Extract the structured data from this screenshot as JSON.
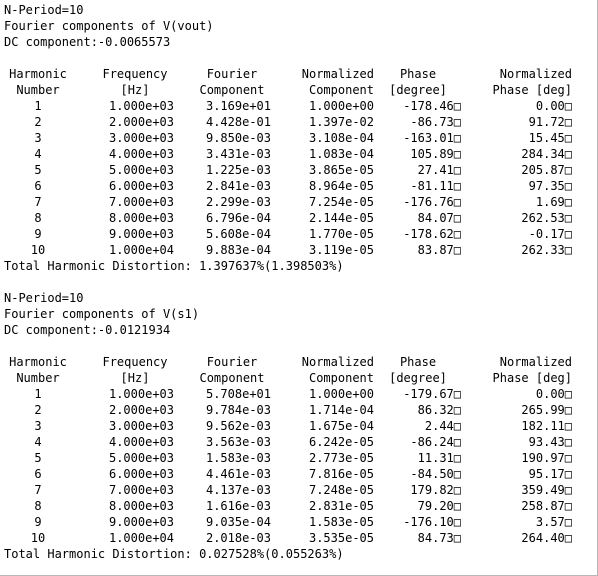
{
  "blocks": [
    {
      "n_period": "N-Period=10",
      "title": "Fourier components of V(vout)",
      "dc": "DC component:-0.0065573",
      "headers": {
        "line1": [
          "Harmonic",
          "Frequency",
          "Fourier",
          "Normalized",
          "Phase",
          "Normalized"
        ],
        "line2": [
          "Number",
          "[Hz]",
          "Component",
          "Component",
          "[degree]",
          "Phase [deg]"
        ]
      },
      "rows": [
        [
          "1",
          "1.000e+03",
          "3.169e+01",
          "1.000e+00",
          "-178.46□",
          "0.00□"
        ],
        [
          "2",
          "2.000e+03",
          "4.428e-01",
          "1.397e-02",
          "-86.73□",
          "91.72□"
        ],
        [
          "3",
          "3.000e+03",
          "9.850e-03",
          "3.108e-04",
          "-163.01□",
          "15.45□"
        ],
        [
          "4",
          "4.000e+03",
          "3.431e-03",
          "1.083e-04",
          "105.89□",
          "284.34□"
        ],
        [
          "5",
          "5.000e+03",
          "1.225e-03",
          "3.865e-05",
          "27.41□",
          "205.87□"
        ],
        [
          "6",
          "6.000e+03",
          "2.841e-03",
          "8.964e-05",
          "-81.11□",
          "97.35□"
        ],
        [
          "7",
          "7.000e+03",
          "2.299e-03",
          "7.254e-05",
          "-176.76□",
          "1.69□"
        ],
        [
          "8",
          "8.000e+03",
          "6.796e-04",
          "2.144e-05",
          "84.07□",
          "262.53□"
        ],
        [
          "9",
          "9.000e+03",
          "5.608e-04",
          "1.770e-05",
          "-178.62□",
          "-0.17□"
        ],
        [
          "10",
          "1.000e+04",
          "9.883e-04",
          "3.119e-05",
          "83.87□",
          "262.33□"
        ]
      ],
      "thd": "Total Harmonic Distortion: 1.397637%(1.398503%)"
    },
    {
      "n_period": "N-Period=10",
      "title": "Fourier components of V(s1)",
      "dc": "DC component:-0.0121934",
      "headers": {
        "line1": [
          "Harmonic",
          "Frequency",
          "Fourier",
          "Normalized",
          "Phase",
          "Normalized"
        ],
        "line2": [
          "Number",
          "[Hz]",
          "Component",
          "Component",
          "[degree]",
          "Phase [deg]"
        ]
      },
      "rows": [
        [
          "1",
          "1.000e+03",
          "5.708e+01",
          "1.000e+00",
          "-179.67□",
          "0.00□"
        ],
        [
          "2",
          "2.000e+03",
          "9.784e-03",
          "1.714e-04",
          "86.32□",
          "265.99□"
        ],
        [
          "3",
          "3.000e+03",
          "9.562e-03",
          "1.675e-04",
          "2.44□",
          "182.11□"
        ],
        [
          "4",
          "4.000e+03",
          "3.563e-03",
          "6.242e-05",
          "-86.24□",
          "93.43□"
        ],
        [
          "5",
          "5.000e+03",
          "1.583e-03",
          "2.773e-05",
          "11.31□",
          "190.97□"
        ],
        [
          "6",
          "6.000e+03",
          "4.461e-03",
          "7.816e-05",
          "-84.50□",
          "95.17□"
        ],
        [
          "7",
          "7.000e+03",
          "4.137e-03",
          "7.248e-05",
          "179.82□",
          "359.49□"
        ],
        [
          "8",
          "8.000e+03",
          "1.616e-03",
          "2.831e-05",
          "79.20□",
          "258.87□"
        ],
        [
          "9",
          "9.000e+03",
          "9.035e-04",
          "1.583e-05",
          "-176.10□",
          "3.57□"
        ],
        [
          "10",
          "1.000e+04",
          "2.018e-03",
          "3.535e-05",
          "84.73□",
          "264.40□"
        ]
      ],
      "thd": "Total Harmonic Distortion: 0.027528%(0.055263%)"
    }
  ]
}
